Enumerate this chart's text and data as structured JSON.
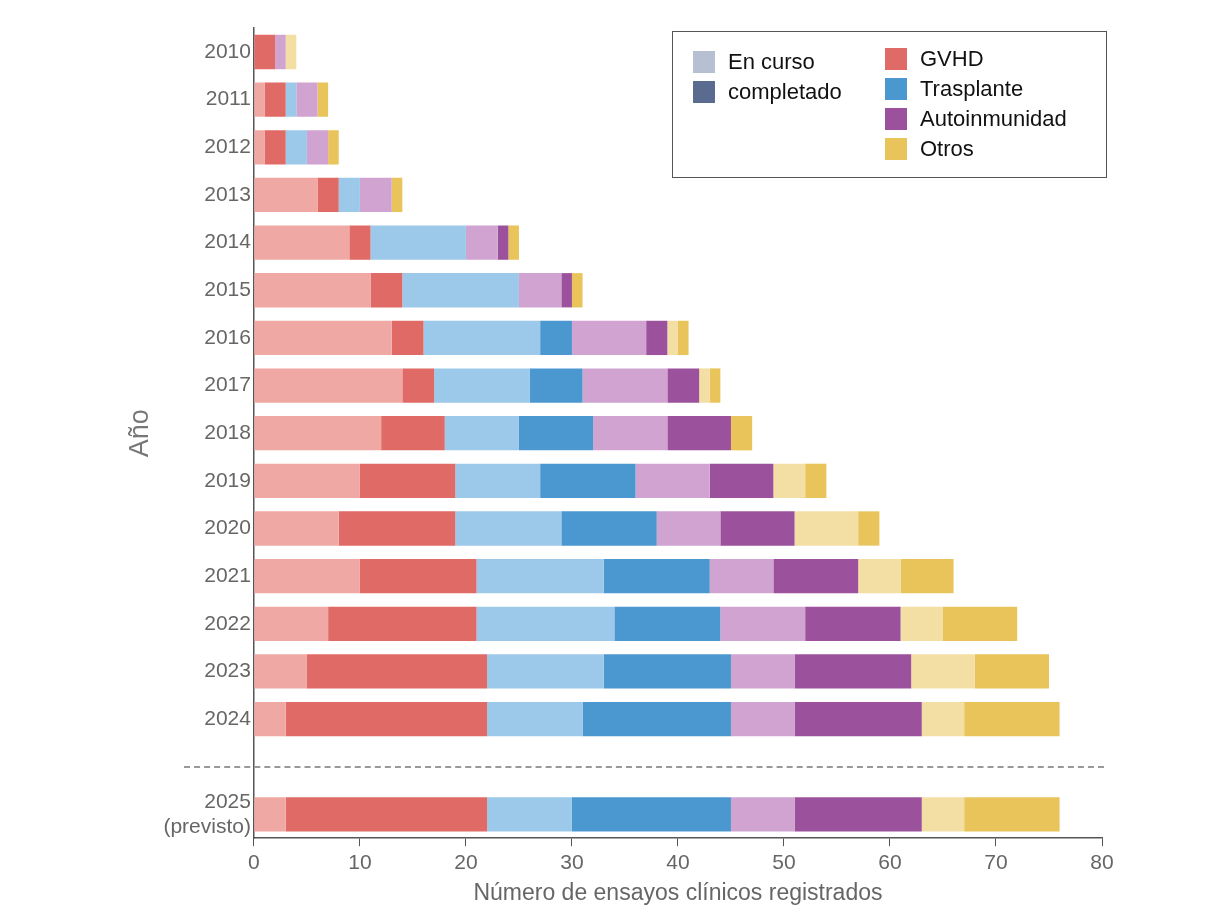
{
  "chart_data": {
    "type": "bar",
    "orientation": "horizontal",
    "stacked": true,
    "xlabel": "Número de ensayos clínicos registrados",
    "ylabel": "Año",
    "categories": [
      "2010",
      "2011",
      "2012",
      "2013",
      "2014",
      "2015",
      "2016",
      "2017",
      "2018",
      "2019",
      "2020",
      "2021",
      "2022",
      "2023",
      "2024",
      null,
      "2025\n(previsto)"
    ],
    "series": [
      {
        "color": "#f0a8a5",
        "values": [
          0,
          1,
          1,
          6,
          9,
          11,
          13,
          14,
          12,
          10,
          8,
          10,
          7,
          5,
          3,
          null,
          3
        ]
      },
      {
        "name": "GVHD",
        "color": "#e06a66",
        "values": [
          2,
          2,
          2,
          2,
          2,
          3,
          3,
          3,
          6,
          9,
          11,
          11,
          14,
          17,
          19,
          null,
          19
        ]
      },
      {
        "color": "#9cc9ea",
        "values": [
          0,
          1,
          2,
          2,
          9,
          11,
          11,
          9,
          7,
          8,
          10,
          12,
          13,
          11,
          9,
          null,
          8
        ]
      },
      {
        "name": "Trasplante",
        "color": "#4b98d0",
        "values": [
          0,
          0,
          0,
          0,
          0,
          0,
          3,
          5,
          7,
          9,
          9,
          10,
          10,
          12,
          14,
          null,
          15
        ]
      },
      {
        "color": "#d0a3d1",
        "values": [
          1,
          2,
          2,
          3,
          3,
          4,
          7,
          8,
          7,
          7,
          6,
          6,
          8,
          6,
          6,
          null,
          6
        ]
      },
      {
        "name": "Autoinmunidad",
        "color": "#9c519d",
        "values": [
          0,
          0,
          0,
          0,
          1,
          1,
          2,
          3,
          6,
          6,
          7,
          8,
          9,
          11,
          12,
          null,
          12
        ]
      },
      {
        "color": "#f3dfa3",
        "values": [
          1,
          0,
          0,
          0,
          0,
          0,
          1,
          1,
          0,
          3,
          6,
          4,
          4,
          6,
          4,
          null,
          4
        ]
      },
      {
        "name": "Otros",
        "color": "#e8c45a",
        "values": [
          0,
          1,
          1,
          1,
          1,
          1,
          1,
          1,
          2,
          2,
          2,
          5,
          7,
          7,
          9,
          null,
          9
        ]
      }
    ],
    "xlim": [
      0,
      80
    ],
    "xticks": [
      0,
      10,
      20,
      30,
      40,
      50,
      60,
      70,
      80
    ],
    "grid": false,
    "legend": "top right",
    "annotations": [
      "En curso",
      "completado"
    ]
  }
}
